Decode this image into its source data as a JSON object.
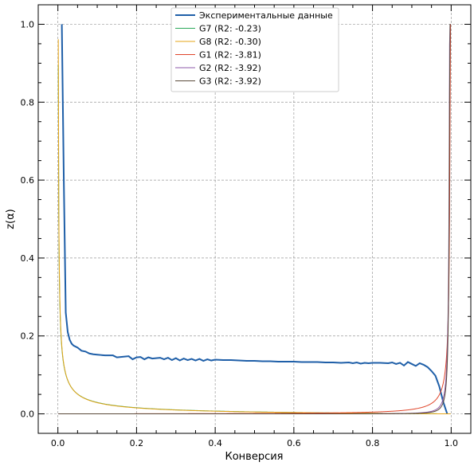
{
  "chart_data": {
    "type": "line",
    "xlabel": "Конверсия",
    "ylabel": "z(α)",
    "xlim": [
      -0.05,
      1.05
    ],
    "ylim": [
      -0.05,
      1.05
    ],
    "xticks": [
      0.0,
      0.2,
      0.4,
      0.6,
      0.8,
      1.0
    ],
    "yticks": [
      0.0,
      0.2,
      0.4,
      0.6,
      0.8,
      1.0
    ],
    "xtick_labels": [
      "0.0",
      "0.2",
      "0.4",
      "0.6",
      "0.8",
      "1.0"
    ],
    "ytick_labels": [
      "0.0",
      "0.2",
      "0.4",
      "0.6",
      "0.8",
      "1.0"
    ],
    "grid": true,
    "legend_position": "top-center",
    "series": [
      {
        "name": "Экспериментальные данные",
        "color": "#1f5fa8",
        "x": [
          0.01,
          0.015,
          0.02,
          0.025,
          0.03,
          0.035,
          0.04,
          0.05,
          0.06,
          0.07,
          0.08,
          0.09,
          0.1,
          0.11,
          0.12,
          0.13,
          0.14,
          0.15,
          0.16,
          0.17,
          0.18,
          0.19,
          0.2,
          0.21,
          0.22,
          0.23,
          0.24,
          0.25,
          0.26,
          0.27,
          0.28,
          0.29,
          0.3,
          0.31,
          0.32,
          0.33,
          0.34,
          0.35,
          0.36,
          0.37,
          0.38,
          0.39,
          0.4,
          0.42,
          0.44,
          0.46,
          0.48,
          0.5,
          0.52,
          0.54,
          0.56,
          0.58,
          0.6,
          0.62,
          0.64,
          0.66,
          0.68,
          0.7,
          0.72,
          0.74,
          0.75,
          0.76,
          0.77,
          0.78,
          0.79,
          0.8,
          0.82,
          0.84,
          0.85,
          0.86,
          0.87,
          0.88,
          0.89,
          0.9,
          0.91,
          0.92,
          0.93,
          0.94,
          0.95,
          0.96,
          0.97,
          0.98,
          0.99
        ],
        "y": [
          1.0,
          0.6,
          0.26,
          0.21,
          0.19,
          0.18,
          0.175,
          0.17,
          0.162,
          0.16,
          0.155,
          0.153,
          0.152,
          0.151,
          0.15,
          0.15,
          0.15,
          0.145,
          0.146,
          0.147,
          0.148,
          0.14,
          0.145,
          0.146,
          0.14,
          0.145,
          0.142,
          0.143,
          0.144,
          0.14,
          0.144,
          0.138,
          0.143,
          0.137,
          0.142,
          0.138,
          0.141,
          0.137,
          0.141,
          0.136,
          0.14,
          0.137,
          0.139,
          0.138,
          0.138,
          0.137,
          0.136,
          0.136,
          0.135,
          0.135,
          0.134,
          0.134,
          0.134,
          0.133,
          0.133,
          0.133,
          0.132,
          0.132,
          0.131,
          0.132,
          0.13,
          0.132,
          0.129,
          0.131,
          0.13,
          0.131,
          0.131,
          0.13,
          0.132,
          0.128,
          0.131,
          0.124,
          0.133,
          0.128,
          0.123,
          0.13,
          0.126,
          0.12,
          0.11,
          0.098,
          0.07,
          0.03,
          0.0
        ]
      },
      {
        "name": "G7 (R2: -0.23)",
        "color": "#2ca85a",
        "formula": "g7"
      },
      {
        "name": "G8 (R2: -0.30)",
        "color": "#e6a417",
        "formula": "g8"
      },
      {
        "name": "G1 (R2: -3.81)",
        "color": "#e0452a",
        "formula": "g1"
      },
      {
        "name": "G2 (R2: -3.92)",
        "color": "#8e5aa8",
        "formula": "g2"
      },
      {
        "name": "G3 (R2: -3.92)",
        "color": "#5a4a3a",
        "formula": "g3"
      }
    ]
  }
}
